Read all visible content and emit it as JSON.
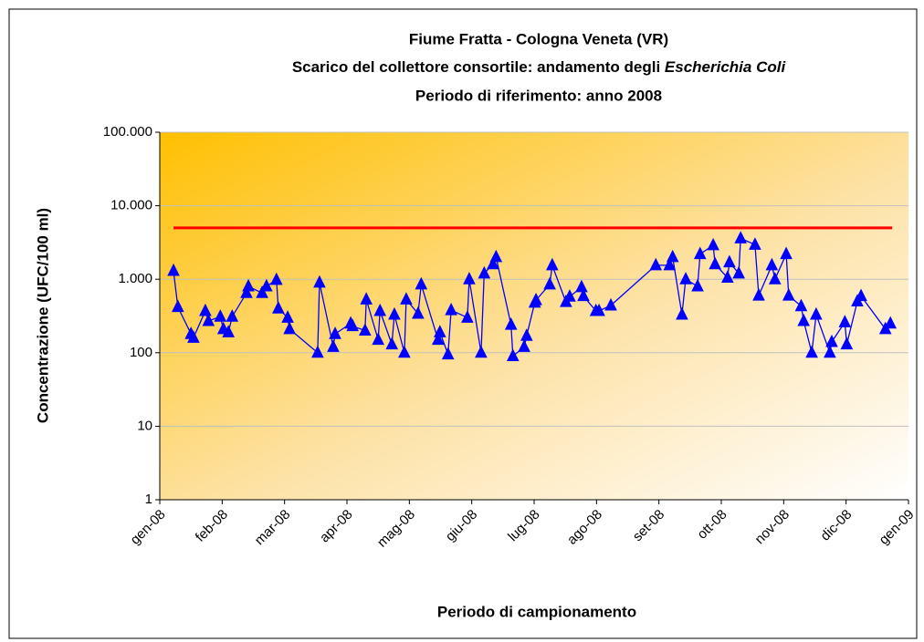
{
  "chart_data": {
    "type": "line",
    "title": "Fiume Fratta - Cologna Veneta (VR)",
    "subtitle": [
      "Scarico del collettore consortile: andamento degli ",
      "Escherichia Coli"
    ],
    "subtitle2": "Periodo di riferimento: anno 2008",
    "x_label": "Periodo di campionamento",
    "y_label": "Concentrazione (UFC/100 ml)",
    "xlim": [
      0,
      12
    ],
    "xticks": [
      {
        "value": 0,
        "label": "gen-08"
      },
      {
        "value": 1,
        "label": "feb-08"
      },
      {
        "value": 2,
        "label": "mar-08"
      },
      {
        "value": 3,
        "label": "apr-08"
      },
      {
        "value": 4,
        "label": "mag-08"
      },
      {
        "value": 5,
        "label": "giu-08"
      },
      {
        "value": 6,
        "label": "lug-08"
      },
      {
        "value": 7,
        "label": "ago-08"
      },
      {
        "value": 8,
        "label": "set-08"
      },
      {
        "value": 9,
        "label": "ott-08"
      },
      {
        "value": 10,
        "label": "nov-08"
      },
      {
        "value": 11,
        "label": "dic-08"
      },
      {
        "value": 12,
        "label": "gen-09"
      }
    ],
    "ylim": [
      1,
      100000
    ],
    "yticks": [
      1,
      10,
      100,
      {
        "value": 1000,
        "label": "1.000"
      },
      {
        "value": 10000,
        "label": "10.000"
      },
      {
        "value": 100000,
        "label": "100.000"
      }
    ],
    "log_y": true,
    "grid": true,
    "series": [
      {
        "color": "#0000ff",
        "marker": "triangle",
        "x": [
          0.22,
          0.29,
          0.5,
          0.54,
          0.73,
          0.78,
          0.97,
          1.02,
          1.1,
          1.16,
          1.39,
          1.42,
          1.64,
          1.71,
          1.87,
          1.9,
          2.05,
          2.08,
          2.53,
          2.56,
          2.78,
          2.81,
          3.06,
          3.09,
          3.29,
          3.31,
          3.5,
          3.53,
          3.72,
          3.76,
          3.92,
          3.95,
          4.14,
          4.19,
          4.46,
          4.49,
          4.62,
          4.67,
          4.93,
          4.96,
          5.15,
          5.2,
          5.34,
          5.39,
          5.63,
          5.66,
          5.84,
          5.88,
          6.01,
          6.03,
          6.25,
          6.29,
          6.51,
          6.57,
          6.76,
          6.79,
          6.99,
          7.04,
          7.23,
          7.95,
          8.17,
          8.22,
          8.37,
          8.43,
          8.62,
          8.66,
          8.87,
          8.9,
          9.1,
          9.13,
          9.28,
          9.31,
          9.54,
          9.6,
          9.81,
          9.86,
          10.04,
          10.08,
          10.28,
          10.32,
          10.45,
          10.52,
          10.74,
          10.77,
          10.98,
          11.01,
          11.18,
          11.24,
          11.63,
          11.71
        ],
        "values": [
          1300,
          420,
          180,
          160,
          370,
          270,
          310,
          210,
          190,
          310,
          650,
          800,
          650,
          800,
          980,
          400,
          300,
          210,
          100,
          900,
          120,
          180,
          250,
          230,
          200,
          530,
          150,
          370,
          130,
          330,
          100,
          530,
          340,
          850,
          150,
          190,
          95,
          380,
          300,
          1000,
          100,
          1200,
          1600,
          2000,
          240,
          90,
          120,
          170,
          480,
          520,
          850,
          1550,
          490,
          580,
          780,
          590,
          370,
          370,
          440,
          1550,
          1550,
          2000,
          330,
          1000,
          800,
          2200,
          2900,
          1600,
          1050,
          1700,
          1200,
          3600,
          2950,
          600,
          1550,
          1000,
          2200,
          600,
          430,
          270,
          100,
          330,
          100,
          140,
          260,
          130,
          500,
          590,
          210,
          250
        ]
      },
      {
        "color": "#ff0000",
        "marker": "none",
        "x": [
          0.22,
          11.74
        ],
        "values": [
          5000,
          5000
        ]
      }
    ]
  }
}
